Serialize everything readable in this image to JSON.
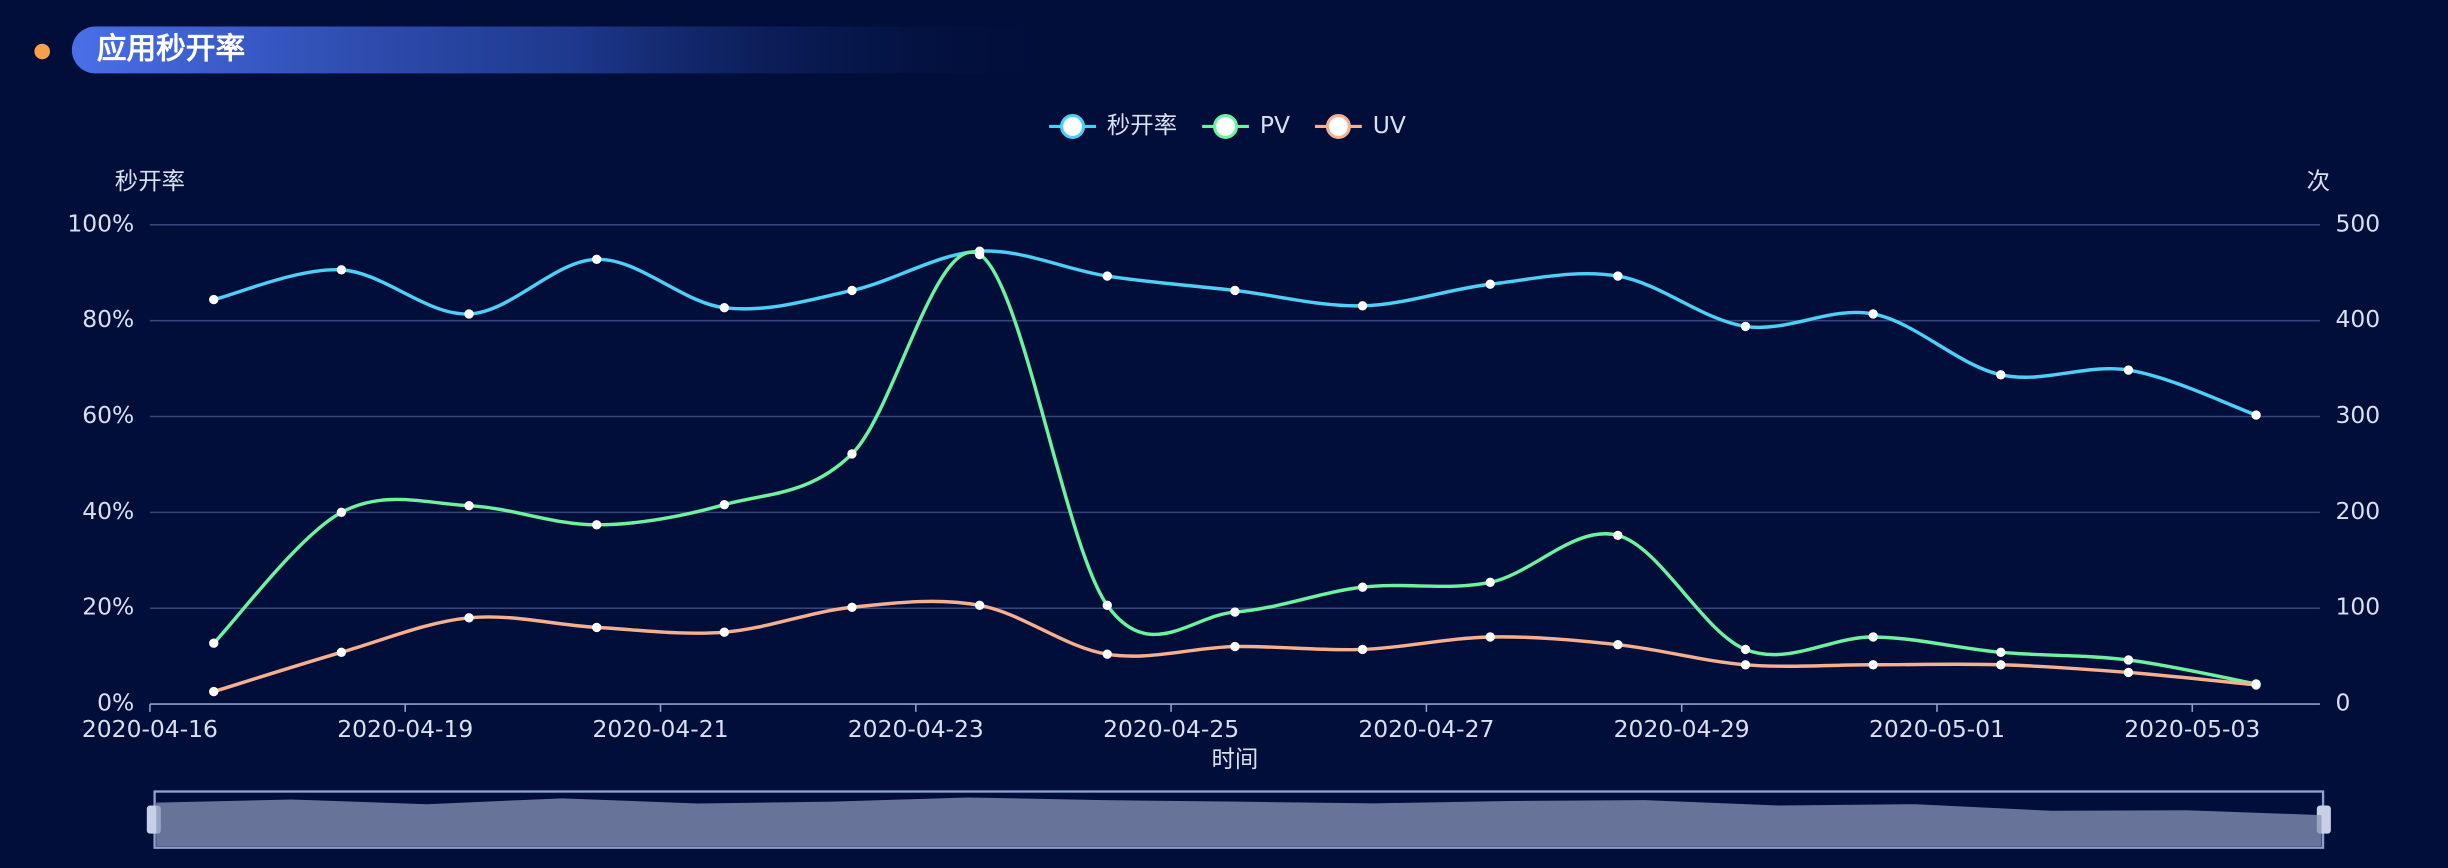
{
  "header": {
    "title": "应用秒开率"
  },
  "chart_data": {
    "type": "line",
    "smooth": true,
    "x_axis_label": "时间",
    "y_axis_label": "秒开率",
    "y2_axis_label": "次",
    "categories": [
      null,
      null,
      null,
      null,
      null,
      null,
      null,
      null,
      null,
      null,
      null,
      null,
      null,
      null,
      null,
      null,
      null
    ],
    "xtick_labels": [
      "2020-04-16",
      "2020-04-19",
      "2020-04-21",
      "2020-04-23",
      "2020-04-25",
      "2020-04-27",
      "2020-04-29",
      "2020-05-01",
      "2020-05-03"
    ],
    "ylim": [
      0,
      100
    ],
    "yticks": [
      {
        "value": 0,
        "label": "0%"
      },
      {
        "value": 20,
        "label": "20%"
      },
      {
        "value": 40,
        "label": "40%"
      },
      {
        "value": 60,
        "label": "60%"
      },
      {
        "value": 80,
        "label": "80%"
      },
      {
        "value": 100,
        "label": "100%"
      }
    ],
    "y2lim": [
      0,
      500
    ],
    "y2ticks": [
      0,
      100,
      200,
      300,
      400,
      500
    ],
    "grid": true,
    "legend": "top",
    "series": [
      {
        "name": "秒开率",
        "color": "#4dd0f5",
        "values": [
          84.4,
          90.6,
          81.4,
          92.8,
          82.7,
          86.3,
          94.5,
          89.3,
          86.3,
          83.1,
          87.6,
          89.3,
          78.8,
          81.4,
          68.7,
          69.7,
          60.3
        ]
      },
      {
        "name": "PV",
        "color": "#6ef2a0",
        "axis": "y2",
        "values": [
          63.5,
          200,
          207,
          187,
          208,
          261,
          469,
          103,
          96,
          122,
          127,
          176,
          57,
          70,
          54,
          46,
          21
        ]
      },
      {
        "name": "UV",
        "color": "#f7b08f",
        "axis": "y2",
        "values": [
          13,
          54,
          90,
          80,
          75,
          101,
          103,
          52,
          60,
          57,
          70,
          62,
          41,
          41,
          41,
          33,
          20
        ]
      }
    ]
  }
}
